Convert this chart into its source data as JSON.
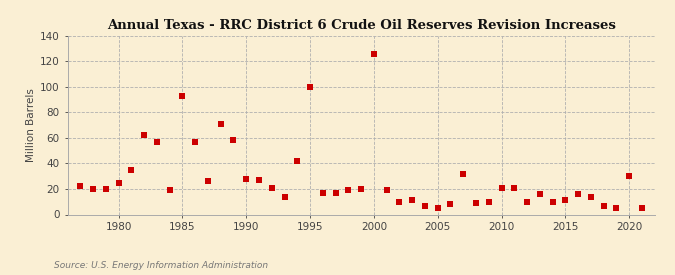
{
  "title": "Annual Texas - RRC District 6 Crude Oil Reserves Revision Increases",
  "ylabel": "Million Barrels",
  "source": "Source: U.S. Energy Information Administration",
  "background_color": "#faefd4",
  "marker_color": "#cc0000",
  "years": [
    1977,
    1978,
    1979,
    1980,
    1981,
    1982,
    1983,
    1984,
    1985,
    1986,
    1987,
    1988,
    1989,
    1990,
    1991,
    1992,
    1993,
    1994,
    1995,
    1996,
    1997,
    1998,
    1999,
    2000,
    2001,
    2002,
    2003,
    2004,
    2005,
    2006,
    2007,
    2008,
    2009,
    2010,
    2011,
    2012,
    2013,
    2014,
    2015,
    2016,
    2017,
    2018,
    2019,
    2020,
    2021
  ],
  "values": [
    22,
    20,
    20,
    25,
    35,
    62,
    57,
    19,
    93,
    57,
    26,
    71,
    58,
    28,
    27,
    21,
    14,
    42,
    100,
    17,
    17,
    19,
    20,
    126,
    19,
    10,
    11,
    7,
    5,
    8,
    32,
    9,
    10,
    21,
    21,
    10,
    16,
    10,
    11,
    16,
    14,
    7,
    5,
    30,
    5
  ],
  "xlim": [
    1976,
    2022
  ],
  "ylim": [
    0,
    140
  ],
  "yticks": [
    0,
    20,
    40,
    60,
    80,
    100,
    120,
    140
  ],
  "xticks": [
    1980,
    1985,
    1990,
    1995,
    2000,
    2005,
    2010,
    2015,
    2020
  ],
  "title_fontsize": 9.5,
  "label_fontsize": 7.5,
  "source_fontsize": 6.5,
  "marker_size": 14
}
